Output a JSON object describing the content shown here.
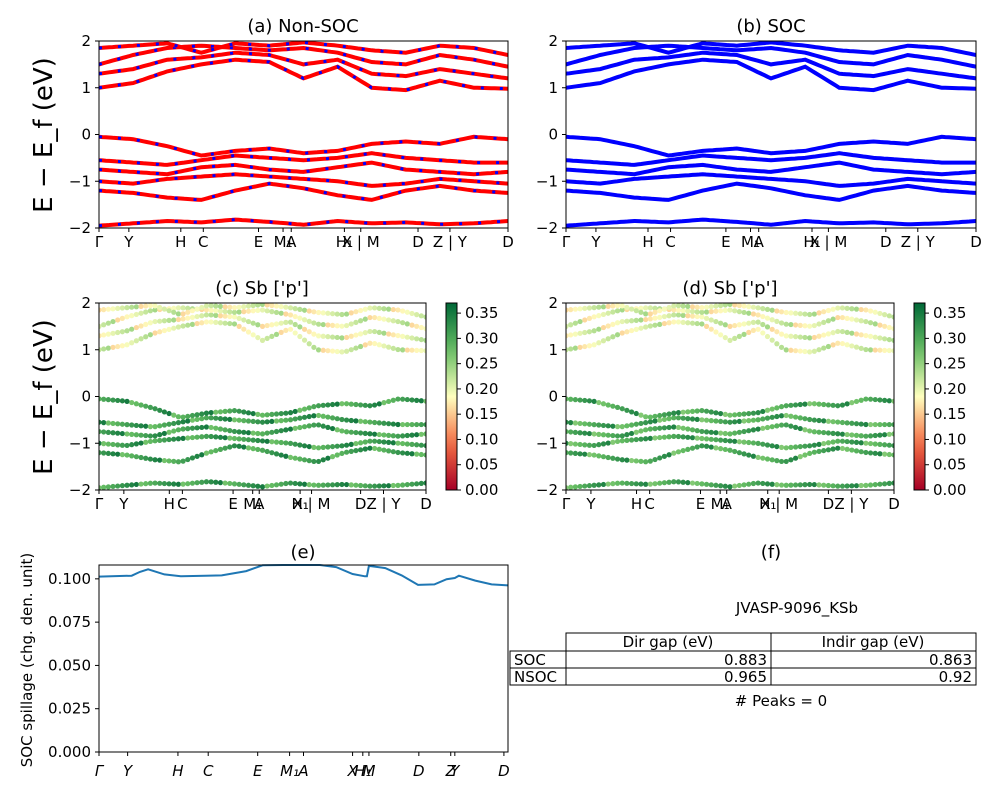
{
  "chart_data": [
    {
      "id": "a",
      "type": "line",
      "title": "(a) Non-SOC",
      "ylabel": "E − E_f (eV)",
      "ylim": [
        -2,
        2
      ],
      "yticks": [
        -2,
        -1,
        0,
        1,
        2
      ],
      "kpath_labels": [
        "Γ",
        "Y",
        "H",
        "C",
        "E",
        "M₁",
        "A",
        "H₁",
        "X | M",
        "D",
        "Z | Y",
        "D"
      ],
      "kpath_positions": [
        0,
        0.073,
        0.2,
        0.255,
        0.39,
        0.45,
        0.47,
        0.6,
        0.64,
        0.78,
        0.858,
        1.0
      ],
      "series": [
        {
          "color": "#ff0000",
          "dash_color": "#0000ff"
        }
      ],
      "bands": [
        [
          -1.95,
          -1.9,
          -1.85,
          -1.88,
          -1.82,
          -1.87,
          -1.93,
          -1.85,
          -1.9,
          -1.88,
          -1.92,
          -1.9,
          -1.85
        ],
        [
          -1.2,
          -1.25,
          -1.35,
          -1.4,
          -1.2,
          -1.05,
          -1.15,
          -1.3,
          -1.4,
          -1.2,
          -1.1,
          -1.2,
          -1.25
        ],
        [
          -1.0,
          -1.05,
          -0.95,
          -0.9,
          -0.85,
          -0.9,
          -0.95,
          -1.0,
          -1.1,
          -1.05,
          -0.95,
          -1.0,
          -1.05
        ],
        [
          -0.75,
          -0.8,
          -0.85,
          -0.7,
          -0.65,
          -0.75,
          -0.8,
          -0.7,
          -0.6,
          -0.75,
          -0.8,
          -0.85,
          -0.8
        ],
        [
          -0.55,
          -0.6,
          -0.65,
          -0.55,
          -0.45,
          -0.5,
          -0.55,
          -0.5,
          -0.4,
          -0.5,
          -0.55,
          -0.6,
          -0.6
        ],
        [
          -0.05,
          -0.1,
          -0.25,
          -0.45,
          -0.35,
          -0.3,
          -0.4,
          -0.35,
          -0.2,
          -0.15,
          -0.2,
          -0.05,
          -0.1
        ],
        [
          1.0,
          1.1,
          1.35,
          1.5,
          1.6,
          1.55,
          1.2,
          1.45,
          1.0,
          0.95,
          1.15,
          1.0,
          0.98
        ],
        [
          1.3,
          1.4,
          1.6,
          1.65,
          1.75,
          1.7,
          1.5,
          1.6,
          1.3,
          1.25,
          1.4,
          1.3,
          1.2
        ],
        [
          1.5,
          1.7,
          1.85,
          1.9,
          1.85,
          1.8,
          1.85,
          1.75,
          1.55,
          1.5,
          1.7,
          1.6,
          1.45
        ],
        [
          1.85,
          1.9,
          1.95,
          1.75,
          1.95,
          1.9,
          1.97,
          1.9,
          1.8,
          1.75,
          1.9,
          1.85,
          1.7
        ]
      ]
    },
    {
      "id": "b",
      "type": "line",
      "title": "(b) SOC",
      "ylim": [
        -2,
        2
      ],
      "yticks": [
        -2,
        -1,
        0,
        1,
        2
      ],
      "kpath_labels": [
        "Γ",
        "Y",
        "H",
        "C",
        "E",
        "M₁",
        "A",
        "H₁",
        "X | M",
        "D",
        "Z | Y",
        "D"
      ],
      "kpath_positions": [
        0,
        0.073,
        0.2,
        0.255,
        0.39,
        0.45,
        0.47,
        0.6,
        0.64,
        0.78,
        0.858,
        1.0
      ],
      "series": [
        {
          "color": "#0000ff"
        }
      ],
      "bands": [
        [
          -1.95,
          -1.9,
          -1.85,
          -1.88,
          -1.82,
          -1.87,
          -1.93,
          -1.85,
          -1.9,
          -1.88,
          -1.92,
          -1.9,
          -1.85
        ],
        [
          -1.2,
          -1.25,
          -1.35,
          -1.4,
          -1.2,
          -1.05,
          -1.15,
          -1.3,
          -1.4,
          -1.2,
          -1.1,
          -1.2,
          -1.25
        ],
        [
          -1.0,
          -1.05,
          -0.95,
          -0.9,
          -0.85,
          -0.9,
          -0.95,
          -1.0,
          -1.1,
          -1.05,
          -0.95,
          -1.0,
          -1.05
        ],
        [
          -0.75,
          -0.8,
          -0.85,
          -0.7,
          -0.65,
          -0.75,
          -0.8,
          -0.7,
          -0.6,
          -0.75,
          -0.8,
          -0.85,
          -0.8
        ],
        [
          -0.55,
          -0.6,
          -0.65,
          -0.55,
          -0.45,
          -0.5,
          -0.55,
          -0.5,
          -0.4,
          -0.5,
          -0.55,
          -0.6,
          -0.6
        ],
        [
          -0.05,
          -0.1,
          -0.25,
          -0.45,
          -0.35,
          -0.3,
          -0.4,
          -0.35,
          -0.2,
          -0.15,
          -0.2,
          -0.05,
          -0.1
        ],
        [
          1.0,
          1.1,
          1.35,
          1.5,
          1.6,
          1.55,
          1.2,
          1.45,
          1.0,
          0.95,
          1.15,
          1.0,
          0.98
        ],
        [
          1.3,
          1.4,
          1.6,
          1.65,
          1.75,
          1.7,
          1.5,
          1.6,
          1.3,
          1.25,
          1.4,
          1.3,
          1.2
        ],
        [
          1.5,
          1.7,
          1.85,
          1.9,
          1.85,
          1.8,
          1.85,
          1.75,
          1.55,
          1.5,
          1.7,
          1.6,
          1.45
        ],
        [
          1.85,
          1.9,
          1.95,
          1.75,
          1.95,
          1.9,
          1.97,
          1.9,
          1.8,
          1.75,
          1.9,
          1.85,
          1.7
        ]
      ]
    },
    {
      "id": "c",
      "type": "scatter",
      "title": "(c)  Sb ['p']",
      "ylabel": "E − E_f (eV)",
      "ylim": [
        -2,
        2
      ],
      "yticks": [
        -2,
        -1,
        0,
        1,
        2
      ],
      "kpath_labels": [
        "Γ",
        "Y",
        "H",
        "C",
        "E",
        "M₁",
        "A",
        "H₁",
        "X | M",
        "D",
        "Z | Y",
        "D"
      ],
      "kpath_positions": [
        0,
        0.076,
        0.215,
        0.255,
        0.41,
        0.47,
        0.49,
        0.615,
        0.65,
        0.8,
        0.87,
        1.0
      ],
      "colorbar": {
        "min": 0.0,
        "max": 0.37,
        "ticks": [
          "0.00",
          "0.05",
          "0.10",
          "0.15",
          "0.20",
          "0.25",
          "0.30",
          "0.35"
        ],
        "colormap": "RdYlGn"
      },
      "conduction_weight": 0.2,
      "valence_weight": 0.31
    },
    {
      "id": "d",
      "type": "scatter",
      "title": "(d) Sb ['p']",
      "ylim": [
        -2,
        2
      ],
      "yticks": [
        -2,
        -1,
        0,
        1,
        2
      ],
      "kpath_labels": [
        "Γ",
        "Y",
        "H",
        "C",
        "E",
        "M₁",
        "A",
        "H₁",
        "X | M",
        "D",
        "Z | Y",
        "D"
      ],
      "kpath_positions": [
        0,
        0.076,
        0.215,
        0.255,
        0.41,
        0.47,
        0.49,
        0.615,
        0.65,
        0.8,
        0.87,
        1.0
      ],
      "colorbar": {
        "min": 0.0,
        "max": 0.37,
        "ticks": [
          "0.00",
          "0.05",
          "0.10",
          "0.15",
          "0.20",
          "0.25",
          "0.30",
          "0.35"
        ],
        "colormap": "RdYlGn"
      },
      "conduction_weight": 0.2,
      "valence_weight": 0.3
    },
    {
      "id": "e",
      "type": "line",
      "title": "(e)",
      "ylabel": "SOC spillage (chg. den. unit)",
      "ylim": [
        0,
        0.108
      ],
      "yticks": [
        "0.000",
        "0.025",
        "0.050",
        "0.075",
        "0.100"
      ],
      "ytick_values": [
        0,
        0.025,
        0.05,
        0.075,
        0.1
      ],
      "kpath_labels": [
        "Γ",
        "Y",
        "H",
        "C",
        "E",
        "M₁",
        "A",
        "X",
        "H₁",
        "M",
        "D",
        "Z",
        "Y",
        "D"
      ],
      "kpath_positions": [
        0,
        0.07,
        0.193,
        0.267,
        0.388,
        0.466,
        0.5,
        0.62,
        0.645,
        0.66,
        0.782,
        0.86,
        0.87,
        0.99
      ],
      "x": [
        0,
        0.04,
        0.08,
        0.1,
        0.12,
        0.16,
        0.2,
        0.26,
        0.3,
        0.36,
        0.4,
        0.45,
        0.5,
        0.54,
        0.58,
        0.62,
        0.65,
        0.655,
        0.66,
        0.7,
        0.74,
        0.78,
        0.82,
        0.85,
        0.87,
        0.88,
        0.92,
        0.96,
        1.0
      ],
      "series": [
        {
          "color": "#1f77b4",
          "values": [
            0.1013,
            0.1016,
            0.1018,
            0.104,
            0.1055,
            0.1026,
            0.1015,
            0.1018,
            0.102,
            0.1045,
            0.1078,
            0.108,
            0.108,
            0.108,
            0.1068,
            0.1028,
            0.1015,
            0.1015,
            0.1075,
            0.1062,
            0.102,
            0.0965,
            0.0968,
            0.0998,
            0.1005,
            0.1018,
            0.099,
            0.0968,
            0.0962
          ]
        }
      ]
    }
  ],
  "panel_f": {
    "title": "(f)",
    "material": "JVASP-9096_KSb",
    "columns": [
      "Dir gap (eV)",
      "Indir gap (eV)"
    ],
    "rows": [
      {
        "label": "SOC",
        "dir": "0.883",
        "indir": "0.863"
      },
      {
        "label": "NSOC",
        "dir": "0.965",
        "indir": "0.92"
      }
    ],
    "peaks": "# Peaks = 0"
  }
}
